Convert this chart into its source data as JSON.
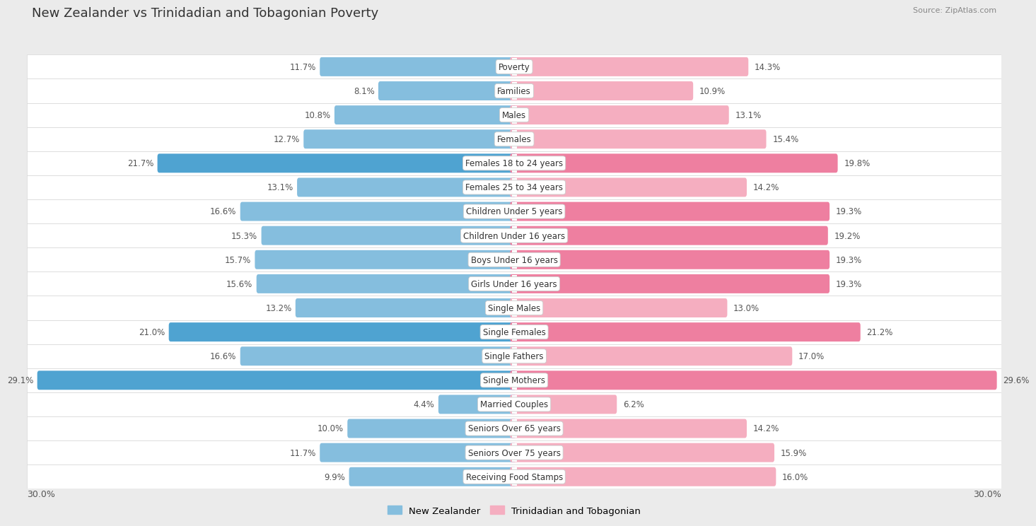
{
  "title": "New Zealander vs Trinidadian and Tobagonian Poverty",
  "source": "Source: ZipAtlas.com",
  "categories": [
    "Poverty",
    "Families",
    "Males",
    "Females",
    "Females 18 to 24 years",
    "Females 25 to 34 years",
    "Children Under 5 years",
    "Children Under 16 years",
    "Boys Under 16 years",
    "Girls Under 16 years",
    "Single Males",
    "Single Females",
    "Single Fathers",
    "Single Mothers",
    "Married Couples",
    "Seniors Over 65 years",
    "Seniors Over 75 years",
    "Receiving Food Stamps"
  ],
  "nz_values": [
    11.7,
    8.1,
    10.8,
    12.7,
    21.7,
    13.1,
    16.6,
    15.3,
    15.7,
    15.6,
    13.2,
    21.0,
    16.6,
    29.1,
    4.4,
    10.0,
    11.7,
    9.9
  ],
  "tt_values": [
    14.3,
    10.9,
    13.1,
    15.4,
    19.8,
    14.2,
    19.3,
    19.2,
    19.3,
    19.3,
    13.0,
    21.2,
    17.0,
    29.6,
    6.2,
    14.2,
    15.9,
    16.0
  ],
  "nz_color": "#85bede",
  "tt_color": "#f5aec0",
  "nz_highlight_color": "#4fa3d1",
  "tt_highlight_color": "#ee7fa0",
  "background_color": "#ebebeb",
  "row_bg_light": "#f7f7f7",
  "row_bg_dark": "#efefef",
  "axis_limit": 30.0,
  "legend_nz": "New Zealander",
  "legend_tt": "Trinidadian and Tobagonian",
  "nz_highlight_indices": [
    4,
    11,
    13
  ],
  "tt_highlight_indices": [
    4,
    6,
    7,
    8,
    9,
    11,
    13
  ]
}
